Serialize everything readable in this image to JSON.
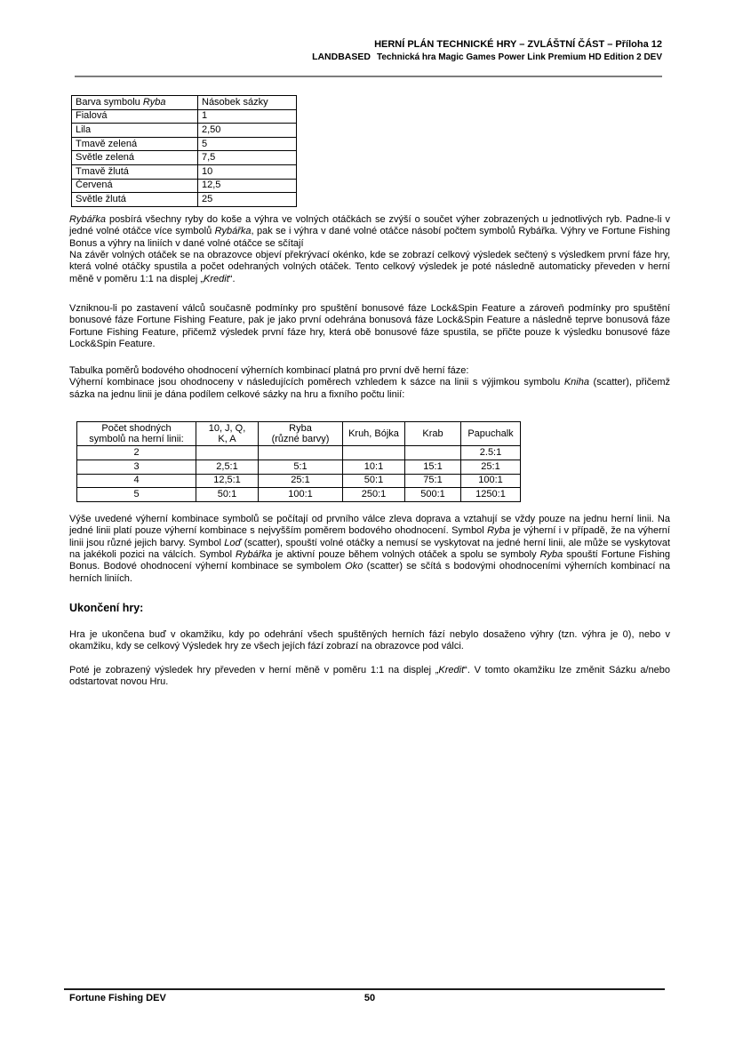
{
  "header": {
    "line1": "HERNÍ PLÁN TECHNICKÉ HRY – ZVLÁŠTNÍ ČÁST – Příloha 12",
    "line2_prefix": "LANDBASED",
    "line2_text": "Technická hra Magic Games Power Link Premium HD Edition 2 DEV"
  },
  "tables": {
    "fish_colors": {
      "header_col1": [
        {
          "t": "Barva symbolu "
        },
        {
          "t": "Ryba",
          "i": true
        }
      ],
      "header_col2": "Násobek sázky",
      "rows": [
        [
          "Fialová",
          "1"
        ],
        [
          "Lila",
          "2,50"
        ],
        [
          "Tmavě zelená",
          "5"
        ],
        [
          "Světle zelená",
          "7,5"
        ],
        [
          "Tmavě žlutá",
          "10"
        ],
        [
          "Červená",
          "12,5"
        ],
        [
          "Světle žlutá",
          "25"
        ]
      ]
    },
    "payouts": {
      "headers": [
        "Počet shodných\nsymbolů na herní linii:",
        "10, J, Q,\nK, A",
        "Ryba\n(různé barvy)",
        "Kruh, Bójka",
        "Krab",
        "Papuchalk"
      ],
      "rows": [
        [
          "2",
          "",
          "",
          "",
          "",
          "2.5:1"
        ],
        [
          "3",
          "2,5:1",
          "5:1",
          "10:1",
          "15:1",
          "25:1"
        ],
        [
          "4",
          "12,5:1",
          "25:1",
          "50:1",
          "75:1",
          "100:1"
        ],
        [
          "5",
          "50:1",
          "100:1",
          "250:1",
          "500:1",
          "1250:1"
        ]
      ]
    }
  },
  "paragraphs": {
    "p1a": [
      {
        "t": "Rybářka",
        "i": true
      },
      {
        "t": " posbírá všechny ryby do koše a výhra ve volných otáčkách se zvýší o součet výher zobrazených u jednotlivých ryb. Padne-li v jedné volné otáčce více symbolů "
      },
      {
        "t": "Rybářka",
        "i": true
      },
      {
        "t": ", pak se i výhra v dané volné otáčce násobí počtem symbolů Rybářka. Výhry ve Fortune Fishing Bonus a výhry na liniích v dané volné otáčce se sčítají"
      }
    ],
    "p1b": [
      {
        "t": "Na závěr volných otáček se na obrazovce objeví překrývací okénko, kde se zobrazí celkový výsledek sečtený s výsledkem první fáze hry, která volné otáčky spustila a počet odehraných volných otáček. Tento celkový výsledek je poté následně automaticky převeden v herní měně v poměru 1:1 na displej „"
      },
      {
        "t": "Kredit",
        "i": true
      },
      {
        "t": "“."
      }
    ],
    "p2": [
      {
        "t": "Vzniknou-li po zastavení válců současně podmínky pro spuštění bonusové fáze Lock&Spin Feature a zároveň podmínky pro spuštění bonusové fáze Fortune Fishing Feature, pak je jako první odehrána bonusová fáze Lock&Spin Feature a následně teprve bonusová fáze Fortune Fishing Feature, přičemž výsledek první fáze hry, která obě bonusové fáze spustila, se přičte pouze k výsledku bonusové fáze Lock&Spin Feature."
      }
    ],
    "p3": [
      {
        "t": "Tabulka poměrů bodového ohodnocení výherních kombinací platná pro první dvě herní fáze:"
      }
    ],
    "p4": [
      {
        "t": "Výherní kombinace jsou ohodnoceny v následujících poměrech vzhledem k sázce na linii s výjimkou symbolu "
      },
      {
        "t": "Kniha",
        "i": true
      },
      {
        "t": " (scatter), přičemž sázka na jednu linii je dána podílem celkové sázky na hru a fixního počtu linií:"
      }
    ],
    "p5": [
      {
        "t": "Výše uvedené výherní kombinace symbolů se počítají od prvního válce zleva doprava a vztahují se vždy pouze na jednu herní linii. Na jedné linii platí pouze výherní kombinace s nejvyšším poměrem bodového ohodnocení. Symbol "
      },
      {
        "t": "Ryba",
        "i": true
      },
      {
        "t": " je výherní i v případě, že na výherní linii jsou různé jejich barvy. Symbol "
      },
      {
        "t": "Loď",
        "i": true
      },
      {
        "t": " (scatter), spouští volné otáčky a nemusí se vyskytovat na jedné herní linii, ale může se vyskytovat na jakékoli pozici na válcích. Symbol "
      },
      {
        "t": "Rybářka",
        "i": true
      },
      {
        "t": " je aktivní pouze během volných otáček a spolu se symboly "
      },
      {
        "t": "Ryba",
        "i": true
      },
      {
        "t": " spouští Fortune Fishing Bonus. Bodové ohodnocení výherní kombinace se symbolem "
      },
      {
        "t": "Oko",
        "i": true
      },
      {
        "t": " (scatter) se sčítá s bodovými ohodnoceními výherních kombinací na herních liniích."
      }
    ],
    "section_heading": "Ukončení hry:",
    "p6": [
      {
        "t": "Hra je ukončena buď v okamžiku, kdy po odehrání všech spuštěných herních fází nebylo dosaženo výhry (tzn. výhra je 0), nebo v okamžiku, kdy se celkový Výsledek hry ze všech jejích fází zobrazí na obrazovce pod válci."
      }
    ],
    "p7": [
      {
        "t": "Poté je zobrazený výsledek hry převeden v herní měně v poměru 1:1 na displej „"
      },
      {
        "t": "Kredit",
        "i": true
      },
      {
        "t": "“. V tomto okamžiku lze změnit Sázku a/nebo odstartovat novou Hru."
      }
    ]
  },
  "footer": {
    "left": "Fortune Fishing DEV",
    "page_number": "50"
  }
}
